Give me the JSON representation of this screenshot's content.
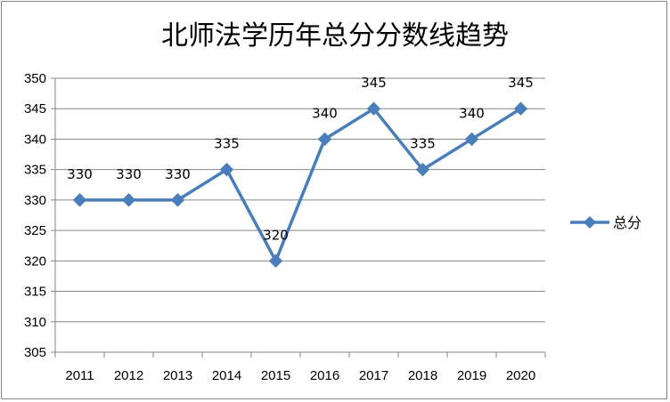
{
  "chart_data": {
    "type": "line",
    "title": "北师法学历年总分分数线趋势",
    "categories": [
      "2011",
      "2012",
      "2013",
      "2014",
      "2015",
      "2016",
      "2017",
      "2018",
      "2019",
      "2020"
    ],
    "series": [
      {
        "name": "总分",
        "values": [
          330,
          330,
          330,
          335,
          320,
          340,
          345,
          335,
          340,
          345
        ],
        "color": "#4A7EBB"
      }
    ],
    "ylim": [
      305,
      350
    ],
    "yticks": [
      "305",
      "310",
      "315",
      "320",
      "325",
      "330",
      "335",
      "340",
      "345",
      "350"
    ],
    "xlabel": "",
    "ylabel": "",
    "grid": true,
    "legend_position": "right",
    "marker": "diamond",
    "data_labels": true
  }
}
